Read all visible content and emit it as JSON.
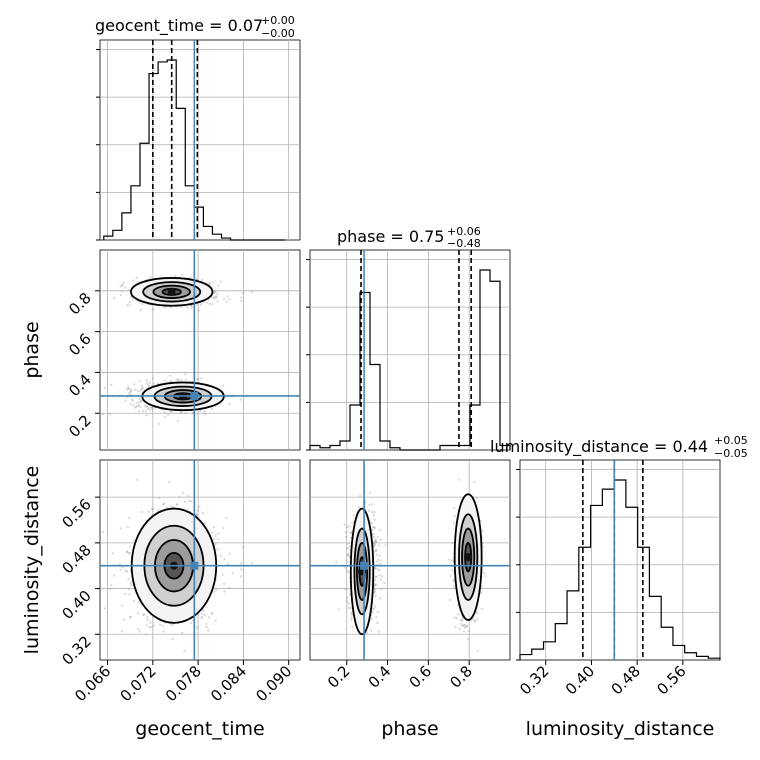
{
  "chart_data": {
    "type": "corner",
    "parameters": [
      "geocent_time",
      "phase",
      "luminosity_distance"
    ],
    "titles": {
      "geocent_time": {
        "label": "geocent_time = 0.07",
        "sup": "+0.00",
        "sub": "−0.00"
      },
      "phase": {
        "label": "phase = 0.75",
        "sup": "+0.06",
        "sub": "−0.48"
      },
      "luminosity_distance": {
        "label": "luminosity_distance = 0.44",
        "sup": "+0.05",
        "sub": "−0.05"
      }
    },
    "axis_labels": {
      "x": [
        "geocent_time",
        "phase",
        "luminosity_distance"
      ],
      "y": [
        "phase",
        "luminosity_distance"
      ]
    },
    "ranges": {
      "geocent_time": [
        0.065,
        0.0915
      ],
      "phase": [
        0.02,
        1.0
      ],
      "luminosity_distance": [
        0.275,
        0.625
      ]
    },
    "ticks": {
      "geocent_time": [
        "0.066",
        "0.072",
        "0.078",
        "0.084",
        "0.090"
      ],
      "phase_x": [
        "0.2",
        "0.4",
        "0.6",
        "0.8"
      ],
      "phase_y": [
        "0.2",
        "0.4",
        "0.6",
        "0.8"
      ],
      "luminosity_distance": [
        "0.32",
        "0.40",
        "0.48",
        "0.56"
      ]
    },
    "truth": {
      "geocent_time": 0.0775,
      "phase": 0.285,
      "luminosity_distance": 0.44
    },
    "quantiles": {
      "geocent_time": [
        0.072,
        0.0745,
        0.0779
      ],
      "phase": [
        0.27,
        0.75,
        0.81
      ],
      "luminosity_distance": [
        0.385,
        0.44,
        0.49
      ]
    },
    "histograms": {
      "geocent_time": [
        2,
        5,
        14,
        28,
        50,
        86,
        92,
        93,
        68,
        28,
        17,
        7,
        3,
        1,
        0,
        0,
        0,
        0,
        0,
        0
      ],
      "phase": [
        2,
        1,
        2,
        4,
        20,
        70,
        38,
        4,
        1,
        0,
        0,
        0,
        0,
        2,
        2,
        2,
        20,
        80,
        75,
        2
      ],
      "luminosity_distance": [
        3,
        6,
        10,
        20,
        38,
        62,
        85,
        94,
        99,
        84,
        62,
        35,
        18,
        8,
        4,
        2,
        1
      ]
    },
    "grid": true
  }
}
